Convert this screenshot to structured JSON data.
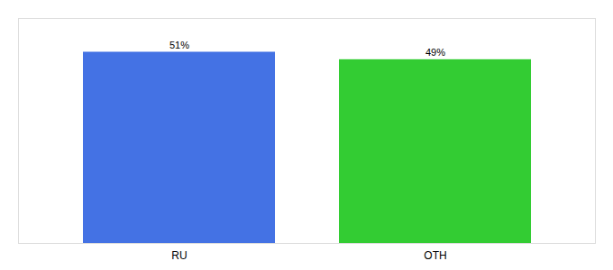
{
  "chart_data": {
    "type": "bar",
    "categories": [
      "RU",
      "OTH"
    ],
    "values": [
      51,
      49
    ],
    "value_labels": [
      "51%",
      "49%"
    ],
    "colors": [
      "#4472e4",
      "#33cc33"
    ],
    "ylim": [
      0,
      60
    ],
    "data_labels": true,
    "tick_labels": "x",
    "grid": false
  }
}
